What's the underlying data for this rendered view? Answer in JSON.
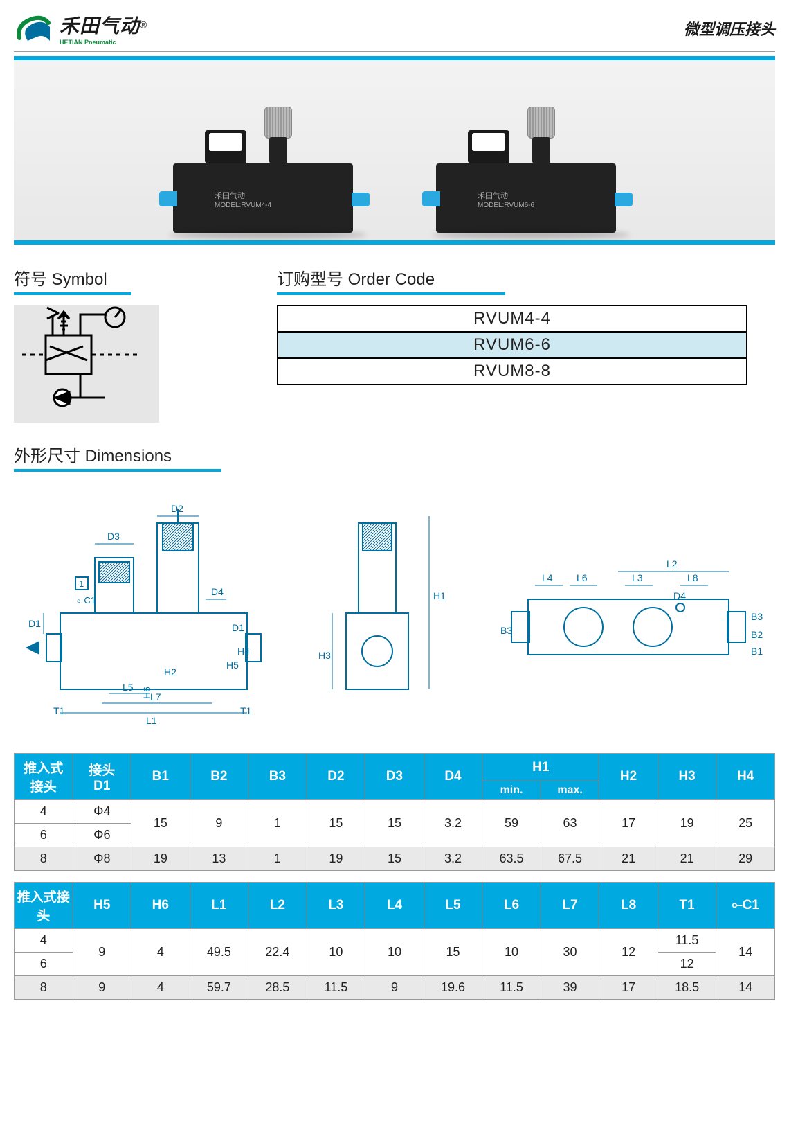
{
  "header": {
    "brand_cn": "禾田气动",
    "brand_en": "HETIAN Pneumatic",
    "page_title": "微型调压接头",
    "reg": "®"
  },
  "product_labels": {
    "brand_line": "禾田气动",
    "model_a": "MODEL:RVUM4-4",
    "model_b": "MODEL:RVUM6-6",
    "gauge_scale": "0.5"
  },
  "sections": {
    "symbol": "符号 Symbol",
    "order_code": "订购型号 Order Code",
    "dimensions": "外形尺寸 Dimensions"
  },
  "order_codes": [
    "RVUM4-4",
    "RVUM6-6",
    "RVUM8-8"
  ],
  "order_highlight_index": 1,
  "dim_labels": [
    "D1",
    "D2",
    "D3",
    "D4",
    "H1",
    "H2",
    "H3",
    "H4",
    "H5",
    "H6",
    "L1",
    "L2",
    "L3",
    "L4",
    "L5",
    "L6",
    "L7",
    "L8",
    "T1",
    "B1",
    "B2",
    "B3",
    "C1",
    "1"
  ],
  "table1": {
    "headers_row1": [
      "推入式\n接头",
      "接头\nD1",
      "B1",
      "B2",
      "B3",
      "D2",
      "D3",
      "D4",
      "H1",
      "",
      "H2",
      "H3",
      "H4"
    ],
    "headers_row2_h1": [
      "min.",
      "max."
    ],
    "rows": [
      {
        "k": "4",
        "d1": "Φ4",
        "b1": "15",
        "b2": "9",
        "b3": "1",
        "d2": "15",
        "d3": "15",
        "d4": "3.2",
        "h1min": "59",
        "h1max": "63",
        "h2": "17",
        "h3": "19",
        "h4": "25",
        "span": true
      },
      {
        "k": "6",
        "d1": "Φ6",
        "span_from_above": true
      },
      {
        "k": "8",
        "d1": "Φ8",
        "b1": "19",
        "b2": "13",
        "b3": "1",
        "d2": "19",
        "d3": "15",
        "d4": "3.2",
        "h1min": "63.5",
        "h1max": "67.5",
        "h2": "21",
        "h3": "21",
        "h4": "29",
        "alt": true
      }
    ]
  },
  "table2": {
    "headers": [
      "推入式接头",
      "H5",
      "H6",
      "L1",
      "L2",
      "L3",
      "L4",
      "L5",
      "L6",
      "L7",
      "L8",
      "T1",
      "⟜C1"
    ],
    "rows": [
      {
        "k": "4",
        "h5": "9",
        "h6": "4",
        "l1": "49.5",
        "l2": "22.4",
        "l3": "10",
        "l4": "10",
        "l5": "15",
        "l6": "10",
        "l7": "30",
        "l8": "12",
        "t1": "11.5",
        "c1": "14",
        "span": true
      },
      {
        "k": "6",
        "t1": "12",
        "span_from_above": true
      },
      {
        "k": "8",
        "h5": "9",
        "h6": "4",
        "l1": "59.7",
        "l2": "28.5",
        "l3": "11.5",
        "l4": "9",
        "l5": "19.6",
        "l6": "11.5",
        "l7": "39",
        "l8": "17",
        "t1": "18.5",
        "c1": "14",
        "alt": true
      }
    ]
  },
  "colors": {
    "accent": "#00a9e0",
    "header_text": "#1a1a1a",
    "table_header_bg": "#00a9e0",
    "table_header_fg": "#ffffff",
    "row_alt_bg": "#e9e9e9",
    "order_hl_bg": "#cfe9f3",
    "border": "#999999",
    "logo_green": "#0a8a3a",
    "tube_blue": "#2aa9e0"
  },
  "fonts": {
    "title_pt": 24,
    "cell_pt": 18,
    "header_brand_pt": 28
  }
}
